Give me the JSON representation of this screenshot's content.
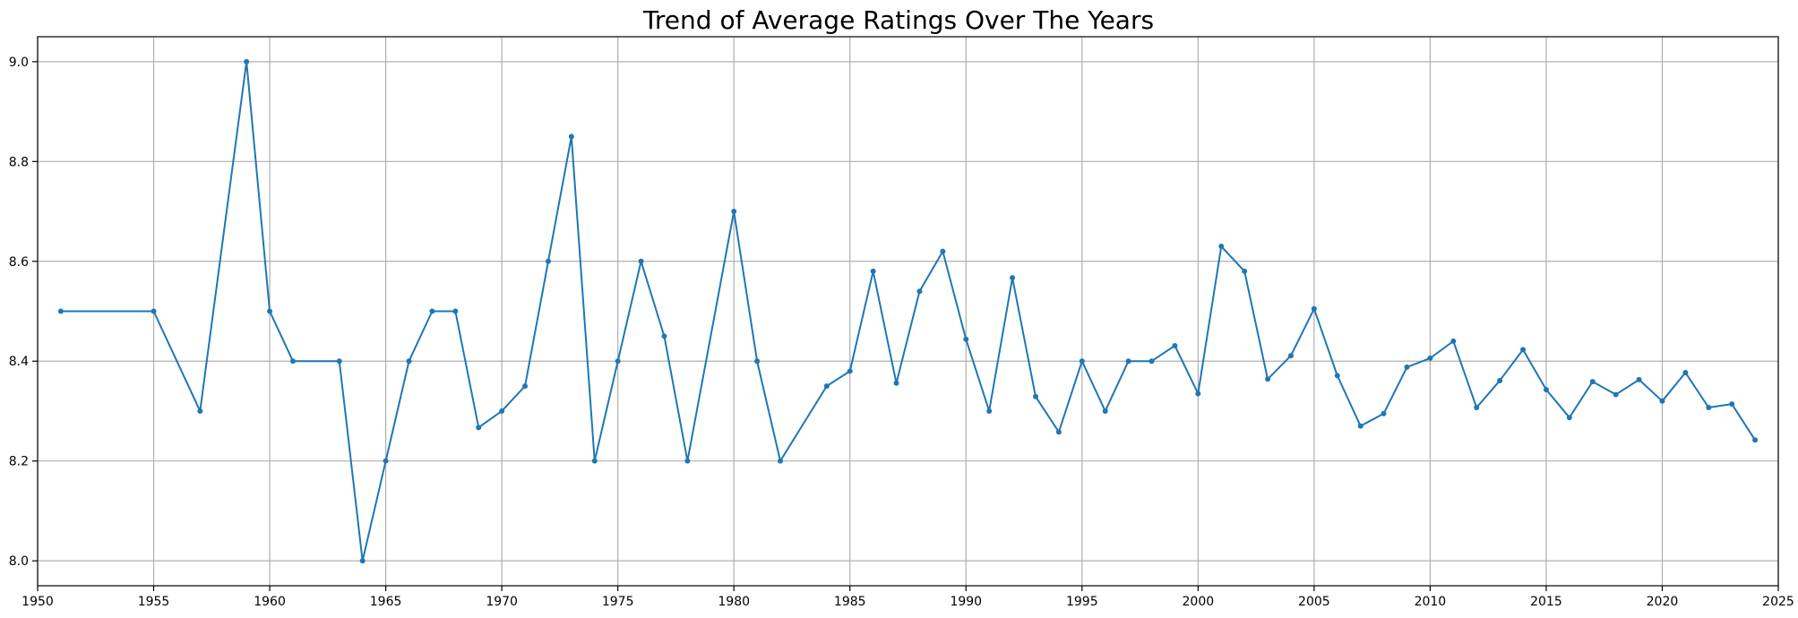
{
  "chart_data": {
    "type": "line",
    "title": "Trend of Average Ratings Over The Years",
    "xlabel": "",
    "ylabel": "",
    "xlim": [
      1950,
      2025
    ],
    "ylim": [
      7.95,
      9.05
    ],
    "xticks": [
      1950,
      1955,
      1960,
      1965,
      1970,
      1975,
      1980,
      1985,
      1990,
      1995,
      2000,
      2005,
      2010,
      2015,
      2020,
      2025
    ],
    "yticks": [
      8.0,
      8.2,
      8.4,
      8.6,
      8.8,
      9.0
    ],
    "xtick_labels": [
      "1950",
      "1955",
      "1960",
      "1965",
      "1970",
      "1975",
      "1980",
      "1985",
      "1990",
      "1995",
      "2000",
      "2005",
      "2010",
      "2015",
      "2020",
      "2025"
    ],
    "ytick_labels": [
      "8.0",
      "8.2",
      "8.4",
      "8.6",
      "8.8",
      "9.0"
    ],
    "grid": true,
    "legend": "none",
    "color": "#1f77b4",
    "series": [
      {
        "x": [
          1951,
          1955,
          1957,
          1959,
          1960,
          1961,
          1963,
          1964,
          1965,
          1966,
          1967,
          1968,
          1969,
          1970,
          1971,
          1972,
          1973,
          1974,
          1975,
          1976,
          1977,
          1978,
          1980,
          1981,
          1982,
          1984,
          1985,
          1986,
          1987,
          1988,
          1989,
          1990,
          1991,
          1992,
          1993,
          1994,
          1995,
          1996,
          1997,
          1998,
          1999,
          2000,
          2001,
          2002,
          2003,
          2004,
          2005,
          2006,
          2007,
          2008,
          2009,
          2010,
          2011,
          2012,
          2013,
          2014,
          2015,
          2016,
          2017,
          2018,
          2019,
          2020,
          2021,
          2022,
          2023,
          2024
        ],
        "values": [
          8.5,
          8.5,
          8.3,
          9.0,
          8.5,
          8.4,
          8.4,
          8.0,
          8.2,
          8.4,
          8.5,
          8.5,
          8.267,
          8.3,
          8.35,
          8.6,
          8.85,
          8.2,
          8.4,
          8.6,
          8.45,
          8.2,
          8.7,
          8.4,
          8.2,
          8.35,
          8.38,
          8.58,
          8.356,
          8.54,
          8.62,
          8.444,
          8.3,
          8.567,
          8.329,
          8.258,
          8.4,
          8.3,
          8.4,
          8.4,
          8.431,
          8.335,
          8.63,
          8.58,
          8.364,
          8.411,
          8.505,
          8.371,
          8.27,
          8.295,
          8.388,
          8.406,
          8.44,
          8.307,
          8.361,
          8.423,
          8.343,
          8.287,
          8.359,
          8.333,
          8.363,
          8.32,
          8.377,
          8.307,
          8.314,
          8.242
        ]
      }
    ]
  }
}
